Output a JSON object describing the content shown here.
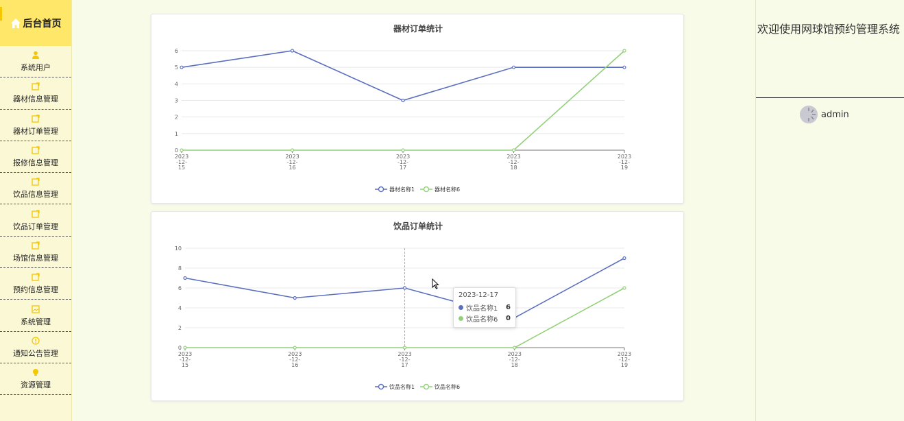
{
  "sidebar": {
    "home_label": "后台首页",
    "items": [
      {
        "label": "系统用户",
        "icon": "user-icon"
      },
      {
        "label": "器材信息管理",
        "icon": "edit-icon"
      },
      {
        "label": "器材订单管理",
        "icon": "edit-icon"
      },
      {
        "label": "报修信息管理",
        "icon": "edit-icon"
      },
      {
        "label": "饮品信息管理",
        "icon": "edit-icon"
      },
      {
        "label": "饮品订单管理",
        "icon": "edit-icon"
      },
      {
        "label": "场馆信息管理",
        "icon": "edit-icon"
      },
      {
        "label": "预约信息管理",
        "icon": "edit-icon"
      },
      {
        "label": "系统管理",
        "icon": "image-icon"
      },
      {
        "label": "通知公告管理",
        "icon": "info-icon"
      },
      {
        "label": "资源管理",
        "icon": "bulb-icon"
      }
    ],
    "accent": "#ffe76a",
    "icon_color": "#f6c600"
  },
  "right_panel": {
    "welcome": "欢迎使用网球馆预约管理系统",
    "username": "admin"
  },
  "tooltip": {
    "title": "2023-12-17",
    "rows": [
      {
        "name": "饮品名称1",
        "value": "6"
      },
      {
        "name": "饮品名称6",
        "value": "0"
      }
    ]
  },
  "chart_data": [
    {
      "type": "line",
      "title": "器材订单统计",
      "x": [
        "2023-12-15",
        "2023-12-16",
        "2023-12-17",
        "2023-12-18",
        "2023-12-19"
      ],
      "x_tick_lines": [
        [
          "2023",
          "-12-",
          "15"
        ],
        [
          "2023",
          "-12-",
          "16"
        ],
        [
          "2023",
          "-12-",
          "17"
        ],
        [
          "2023",
          "-12-",
          "18"
        ],
        [
          "2023",
          "-12-",
          "19"
        ]
      ],
      "series": [
        {
          "name": "器材名称1",
          "values": [
            5,
            6,
            3,
            5,
            5
          ],
          "color": "#5b6fbf"
        },
        {
          "name": "器材名称6",
          "values": [
            0,
            0,
            0,
            0,
            6
          ],
          "color": "#93d07a"
        }
      ],
      "ylim": [
        0,
        6
      ],
      "yticks": [
        0,
        1,
        2,
        3,
        4,
        5,
        6
      ],
      "grid": true,
      "legend": "bottom-center"
    },
    {
      "type": "line",
      "title": "饮品订单统计",
      "x": [
        "2023-12-15",
        "2023-12-16",
        "2023-12-17",
        "2023-12-18",
        "2023-12-19"
      ],
      "x_tick_lines": [
        [
          "2023",
          "-12-",
          "15"
        ],
        [
          "2023",
          "-12-",
          "16"
        ],
        [
          "2023",
          "-12-",
          "17"
        ],
        [
          "2023",
          "-12-",
          "18"
        ],
        [
          "2023",
          "-12-",
          "19"
        ]
      ],
      "series": [
        {
          "name": "饮品名称1",
          "values": [
            7,
            5,
            6,
            3,
            9
          ],
          "color": "#5b6fbf"
        },
        {
          "name": "饮品名称6",
          "values": [
            0,
            0,
            0,
            0,
            6
          ],
          "color": "#93d07a"
        }
      ],
      "ylim": [
        0,
        10
      ],
      "yticks": [
        0,
        2,
        4,
        6,
        8,
        10
      ],
      "grid": true,
      "legend": "bottom-center",
      "highlight_category": "2023-12-17"
    }
  ]
}
